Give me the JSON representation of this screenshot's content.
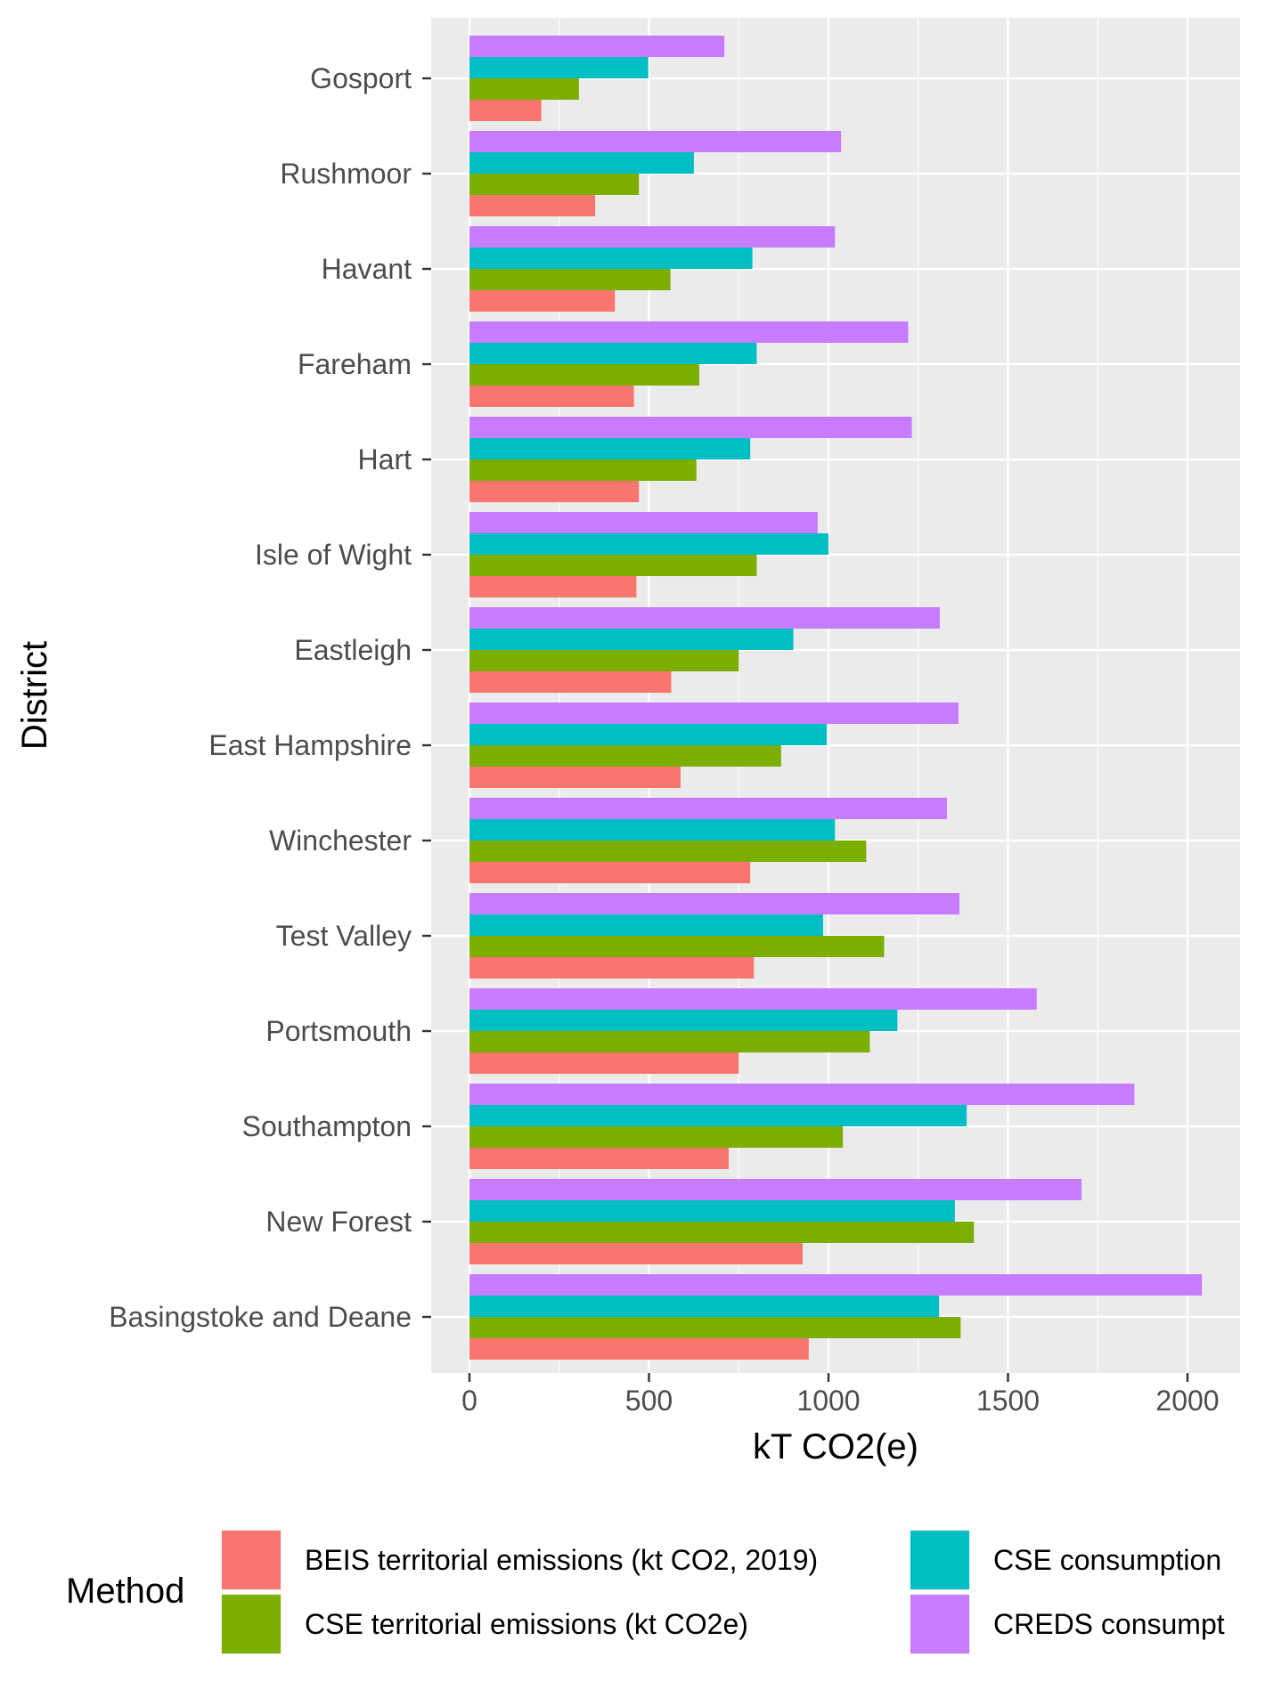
{
  "chart_data": {
    "type": "bar",
    "orientation": "horizontal",
    "xlabel": "kT CO2(e)",
    "ylabel": "District",
    "xlim": [
      -100,
      2150
    ],
    "x_ticks": [
      0,
      500,
      1000,
      1500,
      2000
    ],
    "grid": true,
    "legend_position": "bottom",
    "legend_title": "Method",
    "categories": [
      "Gosport",
      "Rushmoor",
      "Havant",
      "Fareham",
      "Hart",
      "Isle of Wight",
      "Eastleigh",
      "East Hampshire",
      "Winchester",
      "Test Valley",
      "Portsmouth",
      "Southampton",
      "New Forest",
      "Basingstoke and Deane"
    ],
    "series": [
      {
        "name": "BEIS territorial emissions (kt CO2, 2019)",
        "color": "#F8766D",
        "values": [
          200,
          350,
          405,
          458,
          472,
          465,
          562,
          588,
          782,
          792,
          750,
          722,
          928,
          945
        ]
      },
      {
        "name": "CSE territorial emissions (kt CO2e)",
        "color": "#7CAE00",
        "values": [
          305,
          472,
          560,
          640,
          632,
          800,
          750,
          868,
          1105,
          1155,
          1115,
          1040,
          1405,
          1368
        ]
      },
      {
        "name": "CSE consumption",
        "color": "#00BFC4",
        "values": [
          498,
          625,
          788,
          800,
          782,
          1000,
          902,
          995,
          1018,
          985,
          1192,
          1385,
          1352,
          1308
        ]
      },
      {
        "name": "CREDS consumpt",
        "color": "#C77CFF",
        "values": [
          710,
          1035,
          1018,
          1222,
          1232,
          970,
          1310,
          1362,
          1330,
          1365,
          1580,
          1852,
          1705,
          2040
        ]
      }
    ]
  }
}
